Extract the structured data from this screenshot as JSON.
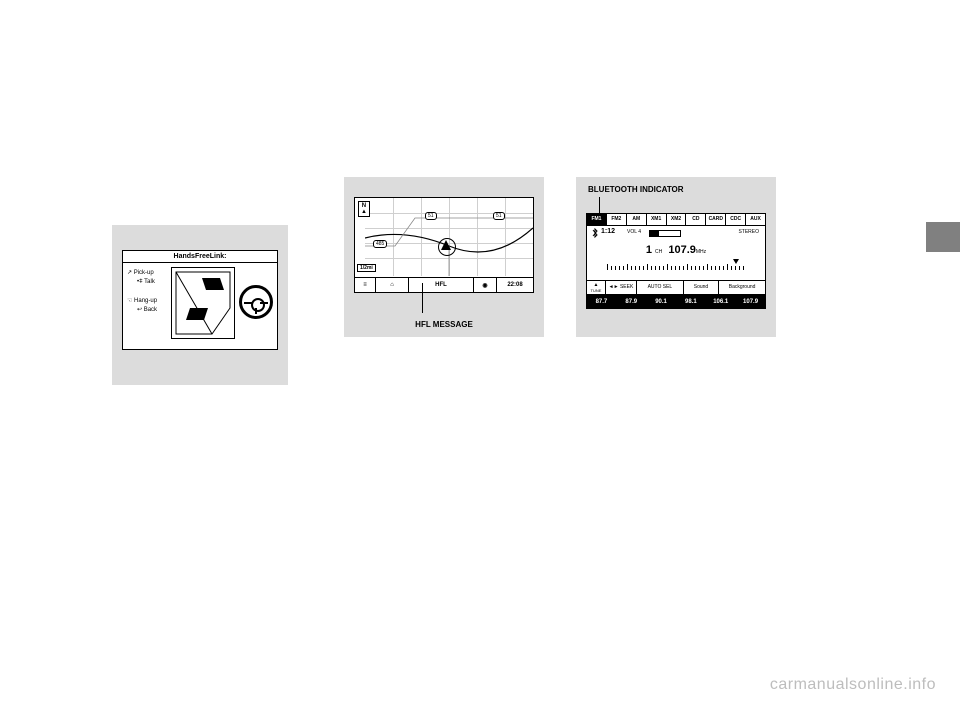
{
  "page": {
    "tab_color": "#808080",
    "watermark": "carmanualsonline.info"
  },
  "fig1": {
    "title": "HandsFreeLink:",
    "labels": {
      "pickup": "Pick-up",
      "talk": "Talk",
      "hangup": "Hang-up",
      "back": "Back"
    }
  },
  "fig2": {
    "caption": "HFL MESSAGE",
    "compass": "N",
    "scale": "1/2mi",
    "routes": [
      "485",
      "51",
      "51"
    ],
    "bottom": {
      "icon1": "⌂",
      "hfl": "HFL",
      "cd_icon": "◉",
      "clock": "22:08"
    }
  },
  "fig3": {
    "caption": "BLUETOOTH INDICATOR",
    "tabs": [
      "FM1",
      "FM2",
      "AM",
      "XM1",
      "XM2",
      "CD",
      "CARD",
      "CDC",
      "AUX"
    ],
    "active_tab_index": 0,
    "time": "1:12",
    "vol_label": "VOL",
    "vol_value": "4",
    "vol_fill_pct": 30,
    "stereo": "STEREO",
    "channel": "1",
    "ch_label": "CH",
    "frequency": "107.9",
    "unit": "MHz",
    "row3": {
      "tune": "TUNE",
      "seek": "SEEK",
      "auto": "AUTO SEL",
      "sound": "Sound",
      "background": "Background"
    },
    "presets": [
      "87.7",
      "87.9",
      "90.1",
      "98.1",
      "106.1",
      "107.9"
    ]
  }
}
